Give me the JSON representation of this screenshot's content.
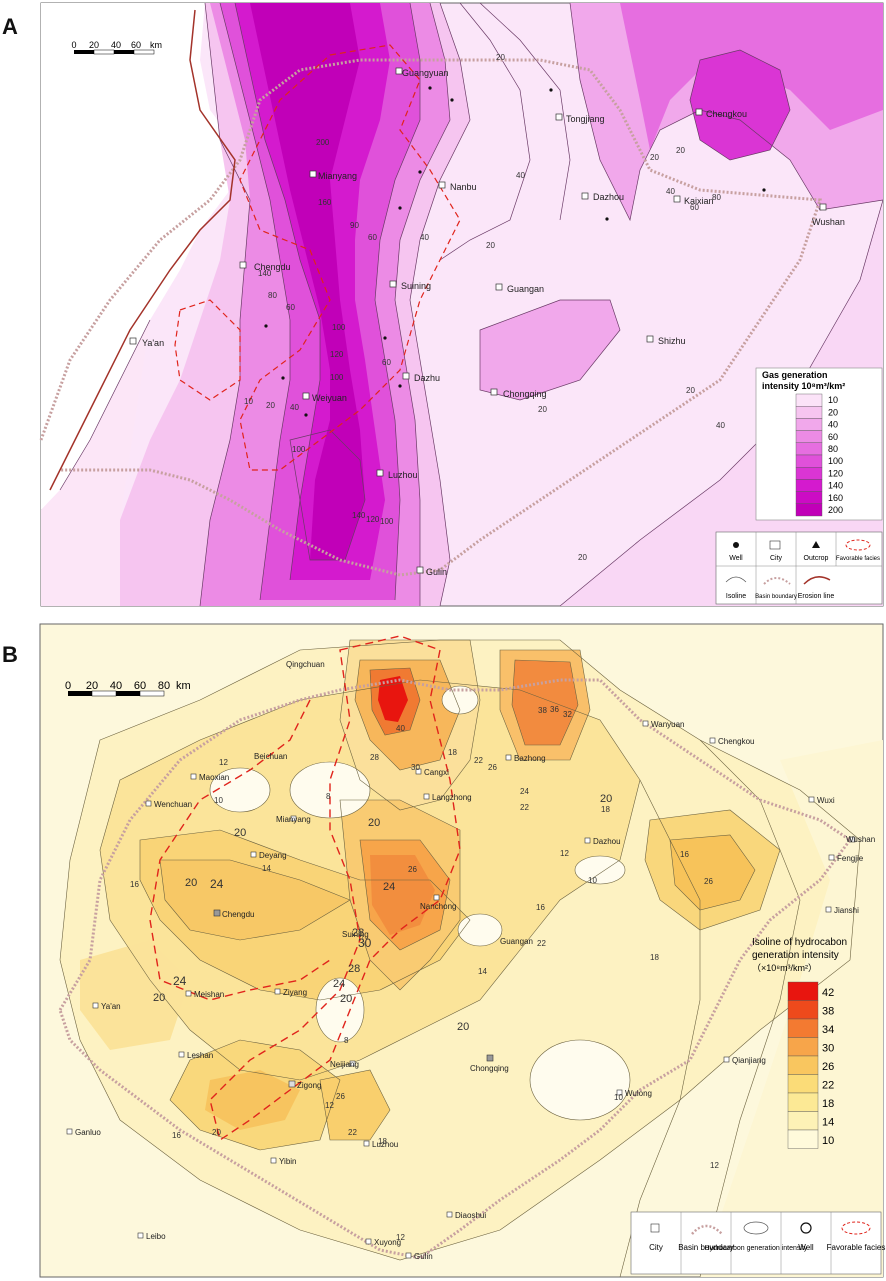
{
  "panel_a": {
    "letter": "A",
    "scale": {
      "ticks": [
        "0",
        "20",
        "40",
        "60"
      ],
      "unit": "km"
    },
    "cities": [
      "Guangyuan",
      "Tongjiang",
      "Chengkou",
      "Mianyang",
      "Nanbu",
      "Dazhou",
      "Kaixian",
      "Wushan",
      "Chengdu",
      "Suining",
      "Guangan",
      "Ya'an",
      "Shizhu",
      "Dazhu",
      "Weiyuan",
      "Chongqing",
      "Luzhou",
      "Gulin"
    ],
    "contour_labels": [
      "20",
      "40",
      "20",
      "20",
      "40",
      "60",
      "80",
      "20",
      "20",
      "40",
      "200",
      "160",
      "140",
      "90",
      "60",
      "100",
      "60",
      "60",
      "80",
      "120",
      "100",
      "10",
      "20",
      "40",
      "100",
      "120",
      "140",
      "100",
      "20",
      "20",
      "40"
    ],
    "legend": {
      "title_line1": "Gas generation",
      "title_line2": "intensity 10⁸m³/km²",
      "levels": [
        "10",
        "20",
        "40",
        "60",
        "80",
        "100",
        "120",
        "140",
        "160",
        "200"
      ],
      "colors": [
        "#fbe3f8",
        "#f6c5f0",
        "#f1a8eb",
        "#ec8be5",
        "#e66ee0",
        "#e051da",
        "#da35d4",
        "#d41ace",
        "#cc0cc4",
        "#c100b8"
      ]
    },
    "symbols": [
      "Well",
      "City",
      "Outcrop",
      "Favorable facies",
      "Isoline",
      "Basin boundary",
      "Erosion line"
    ]
  },
  "panel_b": {
    "letter": "B",
    "scale": {
      "ticks": [
        "0",
        "20",
        "40",
        "60",
        "80"
      ],
      "unit": "km"
    },
    "cities": [
      "Qingchuan",
      "Wanyuan",
      "Chengkou",
      "Beichuan",
      "Maoxian",
      "Cangxi",
      "Bazhong",
      "Langzhong",
      "Wuxi",
      "Wenchuan",
      "Mianyang",
      "Deyang",
      "Dazhou",
      "Wushan",
      "Fengjie",
      "Nanchong",
      "Jianshi",
      "Chengdu",
      "Suining",
      "Guangan",
      "Ya'an",
      "Meishan",
      "Ziyang",
      "Leshan",
      "Neijiang",
      "Chongqing",
      "Qianjiang",
      "Zigong",
      "Wulong",
      "Ganluo",
      "Yibin",
      "Luzhou",
      "Diaoshui",
      "Leibo",
      "Xuyong",
      "Gulin"
    ],
    "contour_labels": [
      "20",
      "24",
      "20",
      "24",
      "20",
      "24",
      "28",
      "30",
      "28",
      "24",
      "20",
      "20",
      "20",
      "20",
      "12",
      "10",
      "8",
      "16",
      "14",
      "18",
      "22",
      "26",
      "32",
      "36",
      "38",
      "40",
      "30",
      "28",
      "24",
      "22",
      "18",
      "26",
      "16",
      "12",
      "10",
      "14",
      "16",
      "18",
      "22",
      "26",
      "8",
      "12",
      "16",
      "20",
      "12",
      "12",
      "10",
      "18",
      "22",
      "26"
    ],
    "legend": {
      "title_line1": "Isoline of hydrocabon",
      "title_line2": "generation intensity",
      "title_line3": "（×10⁸m³/km²）",
      "levels": [
        "42",
        "38",
        "34",
        "30",
        "26",
        "22",
        "18",
        "14",
        "10"
      ],
      "colors": [
        "#e8150f",
        "#ee4a1c",
        "#f37a31",
        "#f7a54a",
        "#f9c65f",
        "#fbdc78",
        "#fce995",
        "#fdf2b6",
        "#fffadb"
      ]
    },
    "symbols": [
      "City",
      "Basin boundary",
      "Hydrocarbon generation intensity",
      "Well",
      "Favorable facies"
    ]
  }
}
